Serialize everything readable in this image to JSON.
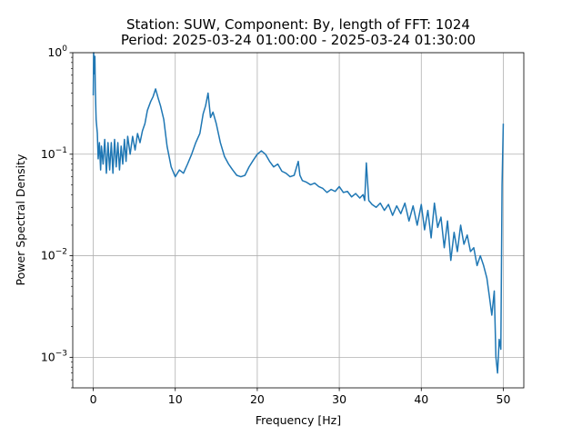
{
  "chart_data": {
    "type": "line",
    "title_line1": "Station: SUW, Component: By, length of FFT: 1024",
    "title_line2": "Period: 2025-03-24 01:00:00 - 2025-03-24 01:30:00",
    "xlabel": "Frequency [Hz]",
    "ylabel": "Power Spectral Density",
    "xscale": "linear",
    "yscale": "log",
    "xlim": [
      -2.5,
      52.5
    ],
    "ylim": [
      0.0005,
      1.0
    ],
    "grid": true,
    "line_color": "#1f77b4",
    "x_ticks": [
      0,
      10,
      20,
      30,
      40,
      50
    ],
    "x_tick_labels": [
      "0",
      "10",
      "20",
      "30",
      "40",
      "50"
    ],
    "y_ticks": [
      0.001,
      0.01,
      0.1,
      1
    ],
    "y_tick_bases": [
      "10",
      "10",
      "10",
      "10"
    ],
    "y_tick_exponents": [
      "−3",
      "−2",
      "−1",
      "0"
    ],
    "series": [
      {
        "x": [
          0,
          0.05,
          0.1,
          0.2,
          0.25,
          0.35,
          0.5,
          0.6,
          0.75,
          0.9,
          1.0,
          1.2,
          1.4,
          1.6,
          1.8,
          2.0,
          2.2,
          2.4,
          2.6,
          2.8,
          3.0,
          3.2,
          3.4,
          3.6,
          3.8,
          4.0,
          4.2,
          4.5,
          4.8,
          5.1,
          5.4,
          5.7,
          6.0,
          6.3,
          6.6,
          7.0,
          7.3,
          7.6,
          7.9,
          8.2,
          8.6,
          9.0,
          9.5,
          10.0,
          10.5,
          11.0,
          11.5,
          12.0,
          12.5,
          13.0,
          13.4,
          13.7,
          14.0,
          14.3,
          14.6,
          15.0,
          15.5,
          16.0,
          16.5,
          17.0,
          17.5,
          18.0,
          18.5,
          19.0,
          19.5,
          20.0,
          20.5,
          21.0,
          21.5,
          22.0,
          22.5,
          23.0,
          23.5,
          24.0,
          24.5,
          24.8,
          25.0,
          25.2,
          25.5,
          26.0,
          26.5,
          27.0,
          27.5,
          28.0,
          28.5,
          29.0,
          29.5,
          30.0,
          30.5,
          31.0,
          31.5,
          32.0,
          32.5,
          32.9,
          33.1,
          33.3,
          33.6,
          34.0,
          34.5,
          35.0,
          35.5,
          36.0,
          36.5,
          37.0,
          37.5,
          38.0,
          38.5,
          39.0,
          39.5,
          40.0,
          40.4,
          40.8,
          41.2,
          41.6,
          42.0,
          42.4,
          42.8,
          43.2,
          43.6,
          44.0,
          44.4,
          44.8,
          45.2,
          45.6,
          46.0,
          46.4,
          46.8,
          47.2,
          47.6,
          48.0,
          48.3,
          48.6,
          48.9,
          49.1,
          49.3,
          49.5,
          49.7,
          49.85,
          50.0
        ],
        "y": [
          0.38,
          1.0,
          0.62,
          0.92,
          0.45,
          0.22,
          0.16,
          0.09,
          0.13,
          0.07,
          0.12,
          0.08,
          0.14,
          0.065,
          0.13,
          0.07,
          0.13,
          0.065,
          0.14,
          0.075,
          0.13,
          0.07,
          0.12,
          0.08,
          0.14,
          0.085,
          0.15,
          0.1,
          0.15,
          0.11,
          0.16,
          0.13,
          0.17,
          0.2,
          0.27,
          0.33,
          0.37,
          0.44,
          0.36,
          0.3,
          0.22,
          0.12,
          0.075,
          0.06,
          0.07,
          0.065,
          0.08,
          0.1,
          0.13,
          0.16,
          0.25,
          0.3,
          0.4,
          0.23,
          0.26,
          0.2,
          0.13,
          0.095,
          0.08,
          0.07,
          0.062,
          0.06,
          0.062,
          0.075,
          0.087,
          0.1,
          0.108,
          0.1,
          0.085,
          0.075,
          0.08,
          0.068,
          0.065,
          0.06,
          0.062,
          0.075,
          0.085,
          0.062,
          0.055,
          0.053,
          0.05,
          0.052,
          0.048,
          0.046,
          0.042,
          0.045,
          0.043,
          0.048,
          0.042,
          0.043,
          0.038,
          0.041,
          0.037,
          0.04,
          0.035,
          0.082,
          0.035,
          0.032,
          0.03,
          0.033,
          0.028,
          0.032,
          0.025,
          0.031,
          0.026,
          0.033,
          0.022,
          0.031,
          0.02,
          0.032,
          0.018,
          0.028,
          0.015,
          0.033,
          0.019,
          0.024,
          0.012,
          0.022,
          0.009,
          0.017,
          0.011,
          0.02,
          0.013,
          0.016,
          0.011,
          0.012,
          0.008,
          0.01,
          0.008,
          0.006,
          0.004,
          0.0026,
          0.0045,
          0.001,
          0.0007,
          0.0015,
          0.0012,
          0.05,
          0.2
        ]
      }
    ]
  }
}
